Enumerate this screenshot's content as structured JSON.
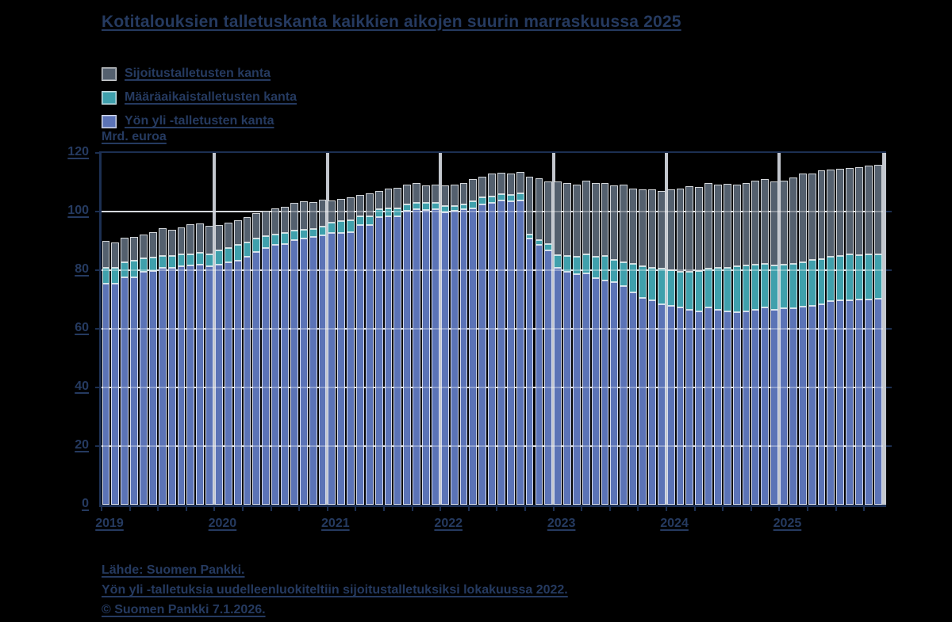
{
  "title": "Kotitalouksien talletuskanta kaikkien aikojen suurin marraskuussa 2025",
  "unit_label": "Mrd. euroa",
  "colors": {
    "background": "#000000",
    "text": "#253a60",
    "axis": "#1c2f52",
    "gridline": "#c3c7ce",
    "overnight": "#5b73b6",
    "term": "#3fa0ac",
    "investment": "#54606e"
  },
  "legend": [
    {
      "label": "Sijoitustalletusten kanta",
      "color": "#54606e"
    },
    {
      "label": "Määräaikaistalletusten kanta",
      "color": "#3fa0ac"
    },
    {
      "label": "Yön yli -talletusten kanta",
      "color": "#5b73b6"
    }
  ],
  "y_axis": {
    "ticks": [
      0,
      20,
      40,
      60,
      80,
      100,
      120
    ],
    "max": 120,
    "unit": "Mrd. euroa"
  },
  "x_axis": {
    "years": [
      "2019",
      "2020",
      "2021",
      "2022",
      "2023",
      "2024",
      "2025"
    ]
  },
  "footer": {
    "lines": [
      "Lähde: Suomen Pankki.",
      "Yön yli -talletuksia uudelleenluokiteltiin sijoitustalletuksiksi lokakuussa 2022.",
      "© Suomen Pankki 7.1.2026."
    ]
  },
  "chart_data": {
    "type": "bar",
    "stacked": true,
    "title": "Kotitalouksien talletuskanta kaikkien aikojen suurin marraskuussa 2025",
    "ylabel": "Mrd. euroa",
    "ylim": [
      0,
      120
    ],
    "grid": true,
    "legend_position": "top-left",
    "categories": [
      "2019-01",
      "2019-02",
      "2019-03",
      "2019-04",
      "2019-05",
      "2019-06",
      "2019-07",
      "2019-08",
      "2019-09",
      "2019-10",
      "2019-11",
      "2019-12",
      "2020-01",
      "2020-02",
      "2020-03",
      "2020-04",
      "2020-05",
      "2020-06",
      "2020-07",
      "2020-08",
      "2020-09",
      "2020-10",
      "2020-11",
      "2020-12",
      "2021-01",
      "2021-02",
      "2021-03",
      "2021-04",
      "2021-05",
      "2021-06",
      "2021-07",
      "2021-08",
      "2021-09",
      "2021-10",
      "2021-11",
      "2021-12",
      "2022-01",
      "2022-02",
      "2022-03",
      "2022-04",
      "2022-05",
      "2022-06",
      "2022-07",
      "2022-08",
      "2022-09",
      "2022-10",
      "2022-11",
      "2022-12",
      "2023-01",
      "2023-02",
      "2023-03",
      "2023-04",
      "2023-05",
      "2023-06",
      "2023-07",
      "2023-08",
      "2023-09",
      "2023-10",
      "2023-11",
      "2023-12",
      "2024-01",
      "2024-02",
      "2024-03",
      "2024-04",
      "2024-05",
      "2024-06",
      "2024-07",
      "2024-08",
      "2024-09",
      "2024-10",
      "2024-11",
      "2024-12",
      "2025-01",
      "2025-02",
      "2025-03",
      "2025-04",
      "2025-05",
      "2025-06",
      "2025-07",
      "2025-08",
      "2025-09",
      "2025-10",
      "2025-11"
    ],
    "series": [
      {
        "name": "Yön yli -talletusten kanta",
        "color": "#5b73b6",
        "values": [
          75.4,
          75.4,
          77.6,
          77.7,
          79.5,
          79.6,
          80.8,
          80.9,
          81.4,
          81.5,
          81.9,
          81.4,
          81.9,
          82.7,
          83.2,
          84.6,
          86.2,
          87.6,
          88.6,
          89.0,
          90.3,
          90.8,
          91.4,
          92.0,
          92.7,
          92.8,
          93.0,
          95.4,
          95.5,
          98.1,
          98.4,
          98.4,
          100.3,
          100.8,
          100.5,
          100.8,
          99.7,
          100.3,
          100.8,
          101.1,
          102.4,
          103.0,
          103.9,
          103.5,
          103.7,
          90.8,
          88.6,
          86.8,
          80.8,
          79.5,
          78.6,
          78.9,
          77.3,
          76.5,
          75.9,
          74.6,
          72.4,
          70.5,
          69.7,
          68.4,
          67.8,
          67.3,
          66.5,
          66.0,
          67.3,
          66.5,
          66.0,
          65.7,
          66.0,
          66.5,
          67.2,
          66.5,
          67.0,
          67.0,
          67.5,
          67.8,
          68.5,
          69.5,
          69.8,
          69.8,
          70.0,
          70.0,
          70.2
        ]
      },
      {
        "name": "Määräaikaistalletusten kanta",
        "color": "#3fa0ac",
        "values": [
          5.4,
          5.5,
          5.1,
          5.5,
          4.6,
          4.6,
          4.1,
          4.1,
          4.0,
          4.0,
          4.0,
          4.0,
          4.9,
          4.9,
          5.4,
          4.9,
          4.6,
          4.0,
          3.6,
          3.7,
          3.2,
          3.0,
          2.7,
          3.0,
          3.5,
          4.0,
          4.1,
          3.0,
          3.0,
          2.7,
          2.7,
          2.7,
          2.1,
          2.2,
          2.4,
          2.2,
          2.2,
          1.7,
          1.6,
          2.4,
          2.4,
          2.2,
          2.0,
          2.3,
          2.4,
          1.3,
          1.7,
          2.2,
          4.3,
          5.4,
          6.0,
          6.5,
          7.3,
          8.4,
          7.6,
          8.1,
          9.8,
          10.9,
          11.1,
          12.1,
          12.2,
          12.2,
          13.0,
          13.7,
          13.2,
          14.2,
          14.8,
          15.7,
          15.6,
          15.5,
          15.0,
          15.0,
          14.9,
          15.2,
          15.3,
          15.7,
          15.4,
          15.1,
          15.0,
          15.5,
          15.2,
          15.4,
          15.2
        ]
      },
      {
        "name": "Sijoitustalletusten kanta",
        "color": "#54606e",
        "values": [
          9.2,
          8.6,
          8.4,
          8.2,
          8.1,
          8.8,
          9.4,
          8.8,
          9.2,
          10.2,
          10.1,
          9.7,
          8.6,
          8.6,
          8.5,
          8.6,
          8.7,
          8.7,
          8.9,
          8.9,
          9.5,
          9.7,
          9.1,
          9.0,
          7.6,
          7.5,
          7.8,
          7.3,
          7.7,
          6.2,
          6.7,
          7.0,
          6.8,
          6.7,
          6.0,
          6.1,
          7.0,
          7.2,
          7.3,
          7.6,
          7.2,
          7.7,
          7.4,
          7.1,
          7.4,
          19.9,
          21.0,
          21.3,
          25.2,
          24.9,
          24.6,
          25.1,
          25.2,
          24.9,
          25.4,
          26.5,
          25.6,
          26.2,
          26.9,
          26.5,
          27.6,
          28.3,
          29.1,
          28.7,
          29.3,
          28.4,
          28.7,
          27.8,
          28.2,
          28.5,
          28.9,
          28.8,
          28.6,
          29.4,
          30.1,
          29.5,
          30.1,
          29.7,
          29.8,
          29.6,
          29.9,
          30.3,
          30.6
        ]
      }
    ]
  }
}
